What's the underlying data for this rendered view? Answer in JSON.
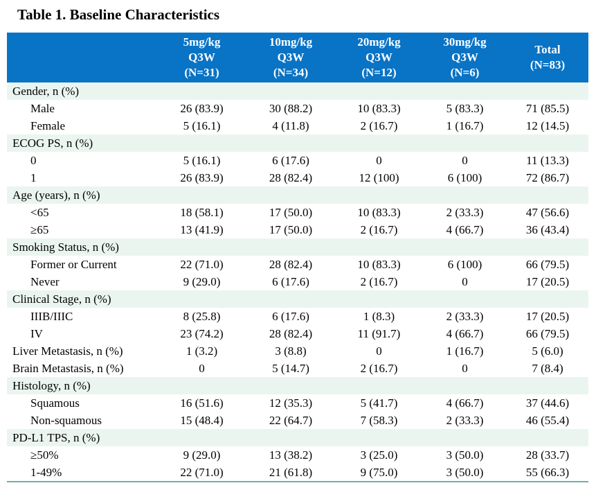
{
  "colors": {
    "header-bg": "#0973c5",
    "header-text": "#ffffff",
    "section-row-bg": "#eaf5ef",
    "table-bottom-border": "#6bb1a8",
    "body-text": "#000000"
  },
  "chart_data": {
    "type": "table",
    "title": "Table 1. Baseline Characteristics",
    "column_headers": [
      {
        "lines": [
          "5mg/kg",
          "Q3W",
          "(N=31)"
        ]
      },
      {
        "lines": [
          "10mg/kg",
          "Q3W",
          "(N=34)"
        ]
      },
      {
        "lines": [
          "20mg/kg",
          "Q3W",
          "(N=12)"
        ]
      },
      {
        "lines": [
          "30mg/kg",
          "Q3W",
          "(N=6)"
        ]
      },
      {
        "lines": [
          "Total",
          "(N=83)"
        ]
      }
    ],
    "rows": [
      {
        "section": true,
        "indent": false,
        "label": "Gender, n (%)",
        "values": []
      },
      {
        "section": false,
        "indent": true,
        "label": "Male",
        "values": [
          "26 (83.9)",
          "30 (88.2)",
          "10 (83.3)",
          "5 (83.3)",
          "71 (85.5)"
        ]
      },
      {
        "section": false,
        "indent": true,
        "label": "Female",
        "values": [
          "5 (16.1)",
          "4 (11.8)",
          "2 (16.7)",
          "1 (16.7)",
          "12 (14.5)"
        ]
      },
      {
        "section": true,
        "indent": false,
        "label": "ECOG PS, n (%)",
        "values": []
      },
      {
        "section": false,
        "indent": true,
        "label": "0",
        "values": [
          "5 (16.1)",
          "6 (17.6)",
          "0",
          "0",
          "11 (13.3)"
        ]
      },
      {
        "section": false,
        "indent": true,
        "label": "1",
        "values": [
          "26 (83.9)",
          "28 (82.4)",
          "12 (100)",
          "6 (100)",
          "72 (86.7)"
        ]
      },
      {
        "section": true,
        "indent": false,
        "label": "Age (years), n (%)",
        "values": []
      },
      {
        "section": false,
        "indent": true,
        "label": "<65",
        "values": [
          "18 (58.1)",
          "17 (50.0)",
          "10 (83.3)",
          "2 (33.3)",
          "47 (56.6)"
        ]
      },
      {
        "section": false,
        "indent": true,
        "label": "≥65",
        "values": [
          "13 (41.9)",
          "17 (50.0)",
          "2 (16.7)",
          "4 (66.7)",
          "36 (43.4)"
        ]
      },
      {
        "section": true,
        "indent": false,
        "label": "Smoking Status, n (%)",
        "values": []
      },
      {
        "section": false,
        "indent": true,
        "label": "Former or Current",
        "values": [
          "22 (71.0)",
          "28 (82.4)",
          "10 (83.3)",
          "6 (100)",
          "66 (79.5)"
        ]
      },
      {
        "section": false,
        "indent": true,
        "label": "Never",
        "values": [
          "9 (29.0)",
          "6 (17.6)",
          "2 (16.7)",
          "0",
          "17 (20.5)"
        ]
      },
      {
        "section": true,
        "indent": false,
        "label": "Clinical Stage, n (%)",
        "values": []
      },
      {
        "section": false,
        "indent": true,
        "label": "IIIB/IIIC",
        "values": [
          "8 (25.8)",
          "6 (17.6)",
          "1 (8.3)",
          "2 (33.3)",
          "17 (20.5)"
        ]
      },
      {
        "section": false,
        "indent": true,
        "label": "IV",
        "values": [
          "23 (74.2)",
          "28 (82.4)",
          "11 (91.7)",
          "4 (66.7)",
          "66 (79.5)"
        ]
      },
      {
        "section": false,
        "indent": false,
        "label": "Liver Metastasis, n (%)",
        "values": [
          "1 (3.2)",
          "3 (8.8)",
          "0",
          "1 (16.7)",
          "5 (6.0)"
        ]
      },
      {
        "section": false,
        "indent": false,
        "label": "Brain Metastasis, n (%)",
        "values": [
          "0",
          "5 (14.7)",
          "2 (16.7)",
          "0",
          "7 (8.4)"
        ]
      },
      {
        "section": true,
        "indent": false,
        "label": "Histology, n (%)",
        "values": []
      },
      {
        "section": false,
        "indent": true,
        "label": "Squamous",
        "values": [
          "16 (51.6)",
          "12 (35.3)",
          "5 (41.7)",
          "4 (66.7)",
          "37 (44.6)"
        ]
      },
      {
        "section": false,
        "indent": true,
        "label": "Non-squamous",
        "values": [
          "15 (48.4)",
          "22 (64.7)",
          "7 (58.3)",
          "2 (33.3)",
          "46 (55.4)"
        ]
      },
      {
        "section": true,
        "indent": false,
        "label": "PD-L1 TPS, n (%)",
        "values": []
      },
      {
        "section": false,
        "indent": true,
        "label": "≥50%",
        "values": [
          "9 (29.0)",
          "13 (38.2)",
          "3 (25.0)",
          "3 (50.0)",
          "28 (33.7)"
        ]
      },
      {
        "section": false,
        "indent": true,
        "label": "1-49%",
        "values": [
          "22 (71.0)",
          "21 (61.8)",
          "9 (75.0)",
          "3 (50.0)",
          "55 (66.3)"
        ]
      }
    ]
  }
}
